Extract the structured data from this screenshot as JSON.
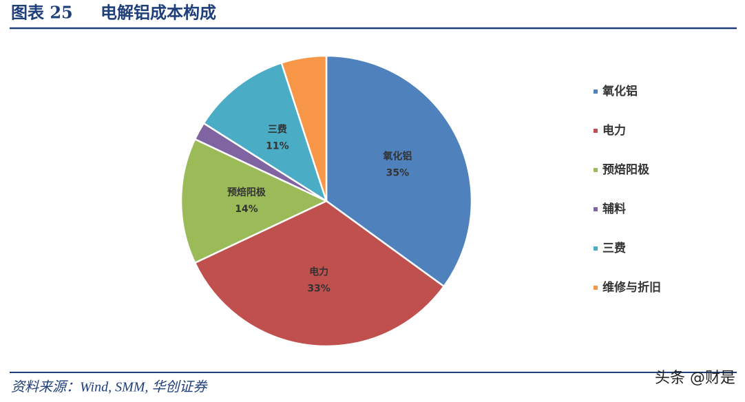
{
  "header": {
    "figure_no": "图表 25",
    "title": "电解铝成本构成"
  },
  "chart_data": {
    "type": "pie",
    "categories": [
      "氧化铝",
      "电力",
      "预焙阳极",
      "辅料",
      "三费",
      "维修与折旧"
    ],
    "values": [
      35,
      33,
      14,
      2,
      11,
      5
    ],
    "value_labels": [
      "35%",
      "33%",
      "14%",
      null,
      "11%",
      null
    ],
    "colors": [
      "#4f81bd",
      "#c0504d",
      "#9bbb59",
      "#8064a2",
      "#4bacc6",
      "#f79646"
    ],
    "legend": "right"
  },
  "footer": {
    "source": "资料来源：Wind, SMM, 华创证券",
    "watermark": "头条 @财是"
  }
}
